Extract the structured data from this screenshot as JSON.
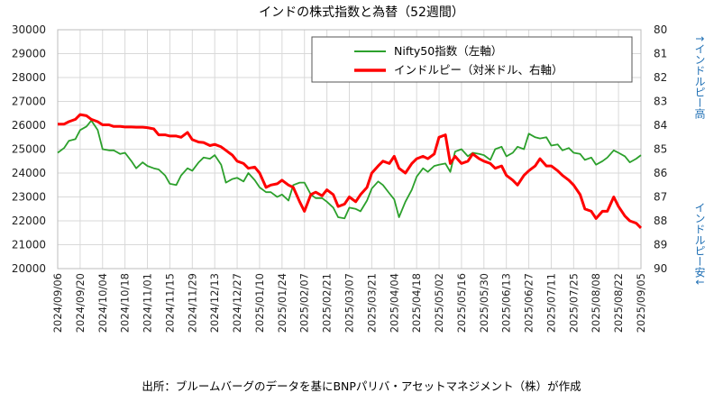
{
  "chart_data": {
    "type": "line",
    "title": "インドの株式指数と為替（52週間）",
    "source": "出所：ブルームバーグのデータを基にBNPパリバ・アセットマネジメント（株）が作成",
    "right_axis_label_top": "↑インドルピー高",
    "right_axis_label_bottom": "インドルピー安↓",
    "left_axis": {
      "ylim": [
        20000,
        30000
      ],
      "ticks": [
        "30000",
        "29000",
        "28000",
        "27000",
        "26000",
        "25000",
        "24000",
        "23000",
        "22000",
        "21000",
        "20000"
      ]
    },
    "right_axis": {
      "ylim": [
        80,
        90
      ],
      "inverted": true,
      "ticks": [
        "80",
        "81",
        "82",
        "83",
        "84",
        "85",
        "86",
        "87",
        "88",
        "89",
        "90"
      ]
    },
    "x_ticks": [
      "2024/09/06",
      "2024/09/20",
      "2024/10/04",
      "2024/10/18",
      "2024/11/01",
      "2024/11/15",
      "2024/11/29",
      "2024/12/13",
      "2024/12/27",
      "2025/01/10",
      "2025/01/24",
      "2025/02/07",
      "2025/02/21",
      "2025/03/07",
      "2025/03/21",
      "2025/04/04",
      "2025/04/18",
      "2025/05/02",
      "2025/05/16",
      "2025/05/30",
      "2025/06/13",
      "2025/06/27",
      "2025/07/11",
      "2025/07/25",
      "2025/08/08",
      "2025/08/22",
      "2025/09/05"
    ],
    "grid": true,
    "legend_position": "top-right",
    "series": [
      {
        "name": "Nifty50指数（左軸）",
        "axis": "left",
        "color": "#2ca02c",
        "points": [
          [
            "2024/09/06",
            24850
          ],
          [
            "2024/09/10",
            25050
          ],
          [
            "2024/09/13",
            25350
          ],
          [
            "2024/09/17",
            25420
          ],
          [
            "2024/09/20",
            25800
          ],
          [
            "2024/09/24",
            25950
          ],
          [
            "2024/09/27",
            26200
          ],
          [
            "2024/10/01",
            25800
          ],
          [
            "2024/10/04",
            25000
          ],
          [
            "2024/10/08",
            24950
          ],
          [
            "2024/10/11",
            24950
          ],
          [
            "2024/10/15",
            24800
          ],
          [
            "2024/10/18",
            24850
          ],
          [
            "2024/10/22",
            24500
          ],
          [
            "2024/10/25",
            24200
          ],
          [
            "2024/10/29",
            24450
          ],
          [
            "2024/11/01",
            24300
          ],
          [
            "2024/11/05",
            24200
          ],
          [
            "2024/11/08",
            24150
          ],
          [
            "2024/11/12",
            23900
          ],
          [
            "2024/11/15",
            23550
          ],
          [
            "2024/11/19",
            23500
          ],
          [
            "2024/11/22",
            23900
          ],
          [
            "2024/11/26",
            24200
          ],
          [
            "2024/11/29",
            24100
          ],
          [
            "2024/12/03",
            24450
          ],
          [
            "2024/12/06",
            24650
          ],
          [
            "2024/12/10",
            24600
          ],
          [
            "2024/12/13",
            24750
          ],
          [
            "2024/12/17",
            24350
          ],
          [
            "2024/12/20",
            23600
          ],
          [
            "2024/12/24",
            23750
          ],
          [
            "2024/12/27",
            23800
          ],
          [
            "2024/12/31",
            23650
          ],
          [
            "2025/01/03",
            24000
          ],
          [
            "2025/01/07",
            23700
          ],
          [
            "2025/01/10",
            23400
          ],
          [
            "2025/01/14",
            23200
          ],
          [
            "2025/01/17",
            23200
          ],
          [
            "2025/01/21",
            23000
          ],
          [
            "2025/01/24",
            23100
          ],
          [
            "2025/01/28",
            22850
          ],
          [
            "2025/01/31",
            23500
          ],
          [
            "2025/02/04",
            23600
          ],
          [
            "2025/02/07",
            23600
          ],
          [
            "2025/02/11",
            23100
          ],
          [
            "2025/02/14",
            22950
          ],
          [
            "2025/02/18",
            22950
          ],
          [
            "2025/02/21",
            22800
          ],
          [
            "2025/02/25",
            22550
          ],
          [
            "2025/02/28",
            22150
          ],
          [
            "2025/03/04",
            22100
          ],
          [
            "2025/03/07",
            22550
          ],
          [
            "2025/03/11",
            22500
          ],
          [
            "2025/03/14",
            22400
          ],
          [
            "2025/03/18",
            22850
          ],
          [
            "2025/03/21",
            23350
          ],
          [
            "2025/03/25",
            23650
          ],
          [
            "2025/03/28",
            23500
          ],
          [
            "2025/04/01",
            23150
          ],
          [
            "2025/04/04",
            22900
          ],
          [
            "2025/04/07",
            22150
          ],
          [
            "2025/04/11",
            22800
          ],
          [
            "2025/04/15",
            23300
          ],
          [
            "2025/04/18",
            23850
          ],
          [
            "2025/04/22",
            24200
          ],
          [
            "2025/04/25",
            24050
          ],
          [
            "2025/04/29",
            24300
          ],
          [
            "2025/05/02",
            24350
          ],
          [
            "2025/05/06",
            24400
          ],
          [
            "2025/05/09",
            24050
          ],
          [
            "2025/05/12",
            24900
          ],
          [
            "2025/05/16",
            25000
          ],
          [
            "2025/05/20",
            24700
          ],
          [
            "2025/05/23",
            24850
          ],
          [
            "2025/05/27",
            24800
          ],
          [
            "2025/05/30",
            24750
          ],
          [
            "2025/06/03",
            24550
          ],
          [
            "2025/06/06",
            25000
          ],
          [
            "2025/06/10",
            25100
          ],
          [
            "2025/06/13",
            24700
          ],
          [
            "2025/06/17",
            24850
          ],
          [
            "2025/06/20",
            25100
          ],
          [
            "2025/06/24",
            25000
          ],
          [
            "2025/06/27",
            25650
          ],
          [
            "2025/07/01",
            25500
          ],
          [
            "2025/07/04",
            25450
          ],
          [
            "2025/07/08",
            25500
          ],
          [
            "2025/07/11",
            25150
          ],
          [
            "2025/07/15",
            25200
          ],
          [
            "2025/07/18",
            24950
          ],
          [
            "2025/07/22",
            25050
          ],
          [
            "2025/07/25",
            24850
          ],
          [
            "2025/07/29",
            24800
          ],
          [
            "2025/08/01",
            24550
          ],
          [
            "2025/08/05",
            24650
          ],
          [
            "2025/08/08",
            24350
          ],
          [
            "2025/08/12",
            24500
          ],
          [
            "2025/08/15",
            24650
          ],
          [
            "2025/08/19",
            24950
          ],
          [
            "2025/08/22",
            24850
          ],
          [
            "2025/08/26",
            24700
          ],
          [
            "2025/08/29",
            24450
          ],
          [
            "2025/09/02",
            24600
          ],
          [
            "2025/09/05",
            24750
          ]
        ]
      },
      {
        "name": "インドルピー（対米ドル、右軸）",
        "axis": "right",
        "color": "#ff0000",
        "points": [
          [
            "2024/09/06",
            83.95
          ],
          [
            "2024/09/10",
            83.95
          ],
          [
            "2024/09/13",
            83.85
          ],
          [
            "2024/09/17",
            83.75
          ],
          [
            "2024/09/20",
            83.55
          ],
          [
            "2024/09/24",
            83.6
          ],
          [
            "2024/09/27",
            83.75
          ],
          [
            "2024/10/01",
            83.85
          ],
          [
            "2024/10/04",
            83.98
          ],
          [
            "2024/10/08",
            83.98
          ],
          [
            "2024/10/11",
            84.05
          ],
          [
            "2024/10/15",
            84.05
          ],
          [
            "2024/10/18",
            84.07
          ],
          [
            "2024/10/22",
            84.07
          ],
          [
            "2024/10/25",
            84.08
          ],
          [
            "2024/10/29",
            84.08
          ],
          [
            "2024/11/01",
            84.1
          ],
          [
            "2024/11/05",
            84.15
          ],
          [
            "2024/11/08",
            84.4
          ],
          [
            "2024/11/12",
            84.4
          ],
          [
            "2024/11/15",
            84.45
          ],
          [
            "2024/11/19",
            84.45
          ],
          [
            "2024/11/22",
            84.5
          ],
          [
            "2024/11/26",
            84.3
          ],
          [
            "2024/11/29",
            84.6
          ],
          [
            "2024/12/03",
            84.7
          ],
          [
            "2024/12/06",
            84.72
          ],
          [
            "2024/12/10",
            84.85
          ],
          [
            "2024/12/13",
            84.8
          ],
          [
            "2024/12/17",
            84.9
          ],
          [
            "2024/12/20",
            85.05
          ],
          [
            "2024/12/24",
            85.25
          ],
          [
            "2024/12/27",
            85.5
          ],
          [
            "2024/12/31",
            85.6
          ],
          [
            "2025/01/03",
            85.8
          ],
          [
            "2025/01/07",
            85.75
          ],
          [
            "2025/01/10",
            86.0
          ],
          [
            "2025/01/14",
            86.6
          ],
          [
            "2025/01/17",
            86.5
          ],
          [
            "2025/01/21",
            86.45
          ],
          [
            "2025/01/24",
            86.3
          ],
          [
            "2025/01/28",
            86.5
          ],
          [
            "2025/01/31",
            86.6
          ],
          [
            "2025/02/04",
            87.2
          ],
          [
            "2025/02/07",
            87.6
          ],
          [
            "2025/02/11",
            86.9
          ],
          [
            "2025/02/14",
            86.8
          ],
          [
            "2025/02/18",
            86.95
          ],
          [
            "2025/02/21",
            86.7
          ],
          [
            "2025/02/25",
            86.9
          ],
          [
            "2025/02/28",
            87.4
          ],
          [
            "2025/03/04",
            87.3
          ],
          [
            "2025/03/07",
            87.0
          ],
          [
            "2025/03/11",
            87.2
          ],
          [
            "2025/03/14",
            86.9
          ],
          [
            "2025/03/18",
            86.6
          ],
          [
            "2025/03/21",
            86.0
          ],
          [
            "2025/03/25",
            85.7
          ],
          [
            "2025/03/28",
            85.5
          ],
          [
            "2025/04/01",
            85.6
          ],
          [
            "2025/04/04",
            85.3
          ],
          [
            "2025/04/07",
            85.8
          ],
          [
            "2025/04/11",
            86.0
          ],
          [
            "2025/04/15",
            85.6
          ],
          [
            "2025/04/18",
            85.4
          ],
          [
            "2025/04/22",
            85.3
          ],
          [
            "2025/04/25",
            85.4
          ],
          [
            "2025/04/29",
            85.2
          ],
          [
            "2025/05/02",
            84.5
          ],
          [
            "2025/05/06",
            84.4
          ],
          [
            "2025/05/09",
            85.6
          ],
          [
            "2025/05/12",
            85.3
          ],
          [
            "2025/05/16",
            85.6
          ],
          [
            "2025/05/20",
            85.5
          ],
          [
            "2025/05/23",
            85.2
          ],
          [
            "2025/05/27",
            85.4
          ],
          [
            "2025/05/30",
            85.5
          ],
          [
            "2025/06/03",
            85.6
          ],
          [
            "2025/06/06",
            85.8
          ],
          [
            "2025/06/10",
            85.7
          ],
          [
            "2025/06/13",
            86.1
          ],
          [
            "2025/06/17",
            86.3
          ],
          [
            "2025/06/20",
            86.5
          ],
          [
            "2025/06/24",
            86.1
          ],
          [
            "2025/06/27",
            85.9
          ],
          [
            "2025/07/01",
            85.7
          ],
          [
            "2025/07/04",
            85.4
          ],
          [
            "2025/07/08",
            85.7
          ],
          [
            "2025/07/11",
            85.7
          ],
          [
            "2025/07/15",
            85.9
          ],
          [
            "2025/07/18",
            86.1
          ],
          [
            "2025/07/22",
            86.3
          ],
          [
            "2025/07/25",
            86.5
          ],
          [
            "2025/07/29",
            86.9
          ],
          [
            "2025/08/01",
            87.5
          ],
          [
            "2025/08/05",
            87.6
          ],
          [
            "2025/08/08",
            87.9
          ],
          [
            "2025/08/12",
            87.6
          ],
          [
            "2025/08/15",
            87.6
          ],
          [
            "2025/08/19",
            87.0
          ],
          [
            "2025/08/22",
            87.4
          ],
          [
            "2025/08/26",
            87.8
          ],
          [
            "2025/08/29",
            88.0
          ],
          [
            "2025/09/02",
            88.1
          ],
          [
            "2025/09/05",
            88.3
          ]
        ]
      }
    ]
  }
}
